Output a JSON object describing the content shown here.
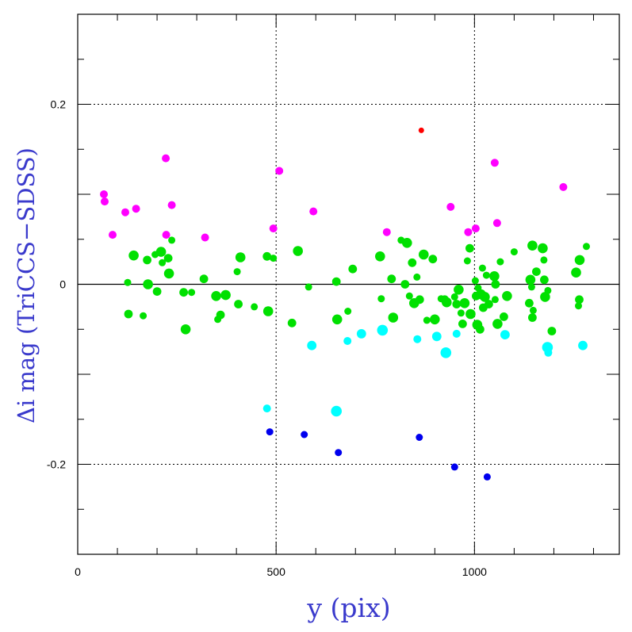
{
  "chart_data": {
    "type": "scatter",
    "xlabel": "y (pix)",
    "ylabel": "Δi mag (TriCCS−SDSS)",
    "xlim": [
      0,
      1365
    ],
    "ylim": [
      -0.3,
      0.3
    ],
    "xticks": [
      {
        "value": 0,
        "label": "0"
      },
      {
        "value": 500,
        "label": "500"
      },
      {
        "value": 1000,
        "label": "1000"
      }
    ],
    "yticks": [
      {
        "value": 0.2,
        "label": "0.2"
      },
      {
        "value": 0,
        "label": "0"
      },
      {
        "value": -0.2,
        "label": "-0.2"
      }
    ],
    "grid": "dotted at x=500,1000 and y=0.2,-0.2; solid line at y=0",
    "colors": {
      "green": "#00e000",
      "magenta": "#ff00ff",
      "cyan": "#00ffff",
      "blue": "#0000ee",
      "red": "#ff0000"
    },
    "series": [
      {
        "color": "green",
        "points": [
          [
            126,
            0.002
          ],
          [
            128,
            -0.033
          ],
          [
            141,
            0.032
          ],
          [
            165,
            -0.035
          ],
          [
            175,
            0.027
          ],
          [
            177,
            0.0
          ],
          [
            195,
            0.033
          ],
          [
            200,
            -0.008
          ],
          [
            210,
            0.036
          ],
          [
            213,
            0.024
          ],
          [
            228,
            0.029
          ],
          [
            230,
            0.012
          ],
          [
            237,
            0.049
          ],
          [
            267,
            -0.009
          ],
          [
            272,
            -0.05
          ],
          [
            287,
            -0.009
          ],
          [
            318,
            0.006
          ],
          [
            349,
            -0.013
          ],
          [
            353,
            -0.039
          ],
          [
            360,
            -0.034
          ],
          [
            373,
            -0.012
          ],
          [
            402,
            0.014
          ],
          [
            405,
            -0.022
          ],
          [
            410,
            0.03
          ],
          [
            445,
            -0.025
          ],
          [
            477,
            0.031
          ],
          [
            480,
            -0.03
          ],
          [
            493,
            0.029
          ],
          [
            540,
            -0.043
          ],
          [
            555,
            0.037
          ],
          [
            582,
            -0.003
          ],
          [
            652,
            0.003
          ],
          [
            654,
            -0.039
          ],
          [
            681,
            -0.03
          ],
          [
            693,
            0.017
          ],
          [
            762,
            0.031
          ],
          [
            765,
            -0.016
          ],
          [
            791,
            0.006
          ],
          [
            795,
            -0.037
          ],
          [
            815,
            0.049
          ],
          [
            825,
            0.0
          ],
          [
            830,
            0.046
          ],
          [
            836,
            -0.013
          ],
          [
            843,
            0.024
          ],
          [
            848,
            -0.021
          ],
          [
            855,
            0.008
          ],
          [
            862,
            -0.017
          ],
          [
            872,
            0.033
          ],
          [
            880,
            -0.04
          ],
          [
            895,
            0.028
          ],
          [
            900,
            -0.039
          ],
          [
            916,
            -0.016
          ],
          [
            925,
            -0.017
          ],
          [
            930,
            -0.02
          ],
          [
            950,
            -0.014
          ],
          [
            955,
            -0.022
          ],
          [
            960,
            -0.006
          ],
          [
            966,
            -0.032
          ],
          [
            970,
            -0.044
          ],
          [
            975,
            -0.021
          ],
          [
            982,
            0.026
          ],
          [
            988,
            0.04
          ],
          [
            990,
            -0.033
          ],
          [
            1002,
            0.004
          ],
          [
            1004,
            -0.013
          ],
          [
            1007,
            -0.045
          ],
          [
            1009,
            -0.004
          ],
          [
            1014,
            -0.05
          ],
          [
            1016,
            -0.011
          ],
          [
            1020,
            0.018
          ],
          [
            1022,
            -0.026
          ],
          [
            1026,
            -0.014
          ],
          [
            1030,
            0.01
          ],
          [
            1036,
            -0.022
          ],
          [
            1050,
            0.009
          ],
          [
            1052,
            -0.017
          ],
          [
            1053,
            0.0
          ],
          [
            1058,
            -0.044
          ],
          [
            1065,
            0.025
          ],
          [
            1074,
            -0.036
          ],
          [
            1082,
            -0.013
          ],
          [
            1100,
            0.036
          ],
          [
            1138,
            -0.021
          ],
          [
            1141,
            0.005
          ],
          [
            1144,
            -0.003
          ],
          [
            1146,
            -0.037
          ],
          [
            1146,
            0.043
          ],
          [
            1148,
            -0.029
          ],
          [
            1156,
            0.014
          ],
          [
            1172,
            0.04
          ],
          [
            1175,
            0.027
          ],
          [
            1176,
            0.005
          ],
          [
            1178,
            -0.014
          ],
          [
            1185,
            -0.007
          ],
          [
            1195,
            -0.052
          ],
          [
            1256,
            0.013
          ],
          [
            1262,
            -0.024
          ],
          [
            1264,
            -0.017
          ],
          [
            1265,
            0.027
          ],
          [
            1282,
            0.042
          ]
        ]
      },
      {
        "color": "magenta",
        "points": [
          [
            66,
            0.1
          ],
          [
            68,
            0.092
          ],
          [
            88,
            0.055
          ],
          [
            120,
            0.08
          ],
          [
            147,
            0.084
          ],
          [
            222,
            0.14
          ],
          [
            223,
            0.055
          ],
          [
            237,
            0.088
          ],
          [
            321,
            0.052
          ],
          [
            493,
            0.062
          ],
          [
            508,
            0.126
          ],
          [
            594,
            0.081
          ],
          [
            779,
            0.058
          ],
          [
            940,
            0.086
          ],
          [
            984,
            0.058
          ],
          [
            1003,
            0.062
          ],
          [
            1051,
            0.135
          ],
          [
            1057,
            0.068
          ],
          [
            1224,
            0.108
          ]
        ]
      },
      {
        "color": "cyan",
        "points": [
          [
            477,
            -0.138
          ],
          [
            590,
            -0.068
          ],
          [
            652,
            -0.141
          ],
          [
            680,
            -0.063
          ],
          [
            715,
            -0.055
          ],
          [
            768,
            -0.051
          ],
          [
            856,
            -0.061
          ],
          [
            905,
            -0.058
          ],
          [
            928,
            -0.076
          ],
          [
            955,
            -0.055
          ],
          [
            1077,
            -0.056
          ],
          [
            1184,
            -0.07
          ],
          [
            1186,
            -0.076
          ],
          [
            1273,
            -0.068
          ]
        ]
      },
      {
        "color": "blue",
        "points": [
          [
            484,
            -0.164
          ],
          [
            571,
            -0.167
          ],
          [
            657,
            -0.187
          ],
          [
            861,
            -0.17
          ],
          [
            950,
            -0.203
          ],
          [
            1032,
            -0.214
          ]
        ]
      },
      {
        "color": "red",
        "points": [
          [
            866,
            0.171
          ]
        ]
      }
    ]
  }
}
